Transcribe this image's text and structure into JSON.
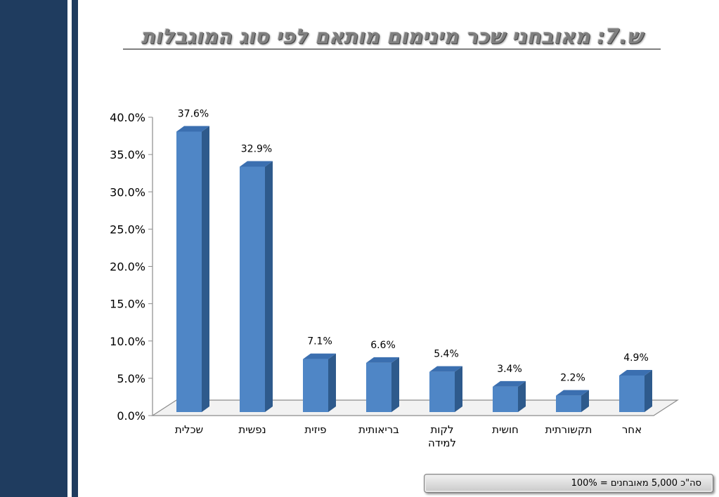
{
  "slide": {
    "title": "ש.7: מאובחני שכר מינימום מותאם לפי סוג המוגבלות",
    "footer_note": "סה\"כ 5,000 מאובחנים = 100%"
  },
  "colors": {
    "sidebar": "#1f3c5f",
    "bar_front": "#4f86c6",
    "bar_side": "#2e5a8c",
    "bar_top": "#3b6fb0",
    "title_text": "#7f7f7f"
  },
  "chart_data": {
    "type": "bar",
    "title": "",
    "xlabel": "",
    "ylabel": "",
    "categories": [
      "שכלית",
      "נפשית",
      "פיזית",
      "בריאותית",
      "לקות למידה",
      "חושית",
      "תקשורתית",
      "אחר"
    ],
    "values": [
      37.6,
      32.9,
      7.1,
      6.6,
      5.4,
      3.4,
      2.2,
      4.9
    ],
    "data_labels": [
      "37.6%",
      "32.9%",
      "7.1%",
      "6.6%",
      "5.4%",
      "3.4%",
      "2.2%",
      "4.9%"
    ],
    "ylim": [
      0,
      40
    ],
    "y_ticks": [
      "0.0%",
      "5.0%",
      "10.0%",
      "15.0%",
      "20.0%",
      "25.0%",
      "30.0%",
      "35.0%",
      "40.0%"
    ],
    "grid": false,
    "legend": "none",
    "style": "3d-columns"
  }
}
